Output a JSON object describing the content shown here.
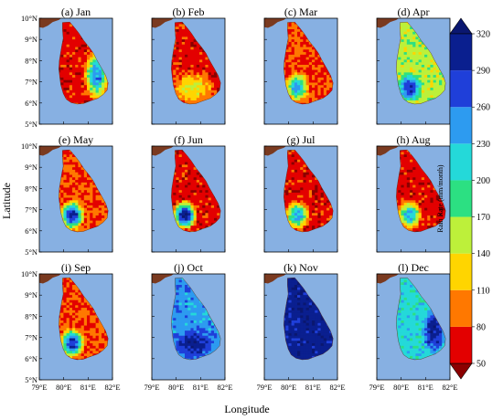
{
  "chart_data": {
    "type": "heatmap",
    "xlabel": "Longitude",
    "ylabel": "Latitude",
    "x_ticks": [
      "79°E",
      "80°E",
      "81°E",
      "82°E"
    ],
    "y_ticks": [
      "5°N",
      "6°N",
      "7°N",
      "8°N",
      "9°N",
      "10°N"
    ],
    "xlim": [
      79,
      82
    ],
    "ylim": [
      5,
      10
    ],
    "colorbar": {
      "label": "Rain Rate (mm/month)",
      "ticks": [
        "50",
        "80",
        "110",
        "140",
        "170",
        "200",
        "230",
        "260",
        "290",
        "320"
      ],
      "colors": [
        "#8b0000",
        "#e30000",
        "#ff7800",
        "#ffd500",
        "#bdf03a",
        "#2ce082",
        "#24d9d9",
        "#2d9bf0",
        "#1f3fd9",
        "#0a1f8f",
        "#0a1770"
      ]
    },
    "background_colors": {
      "ocean": "#87b0e2",
      "land_outside": "#7a3a20"
    },
    "panels": [
      {
        "label": "(a) Jan",
        "month": "Jan",
        "dominant_range_mm": [
          50,
          80
        ],
        "wettest_range_mm": [
          200,
          290
        ],
        "wet_region": "east"
      },
      {
        "label": "(b) Feb",
        "month": "Feb",
        "dominant_range_mm": [
          50,
          80
        ],
        "wettest_range_mm": [
          110,
          170
        ],
        "wet_region": "south"
      },
      {
        "label": "(c) Mar",
        "month": "Mar",
        "dominant_range_mm": [
          50,
          110
        ],
        "wettest_range_mm": [
          170,
          290
        ],
        "wet_region": "south-west"
      },
      {
        "label": "(d) Apr",
        "month": "Apr",
        "dominant_range_mm": [
          110,
          200
        ],
        "wettest_range_mm": [
          260,
          320
        ],
        "wet_region": "south-west"
      },
      {
        "label": "(e) May",
        "month": "May",
        "dominant_range_mm": [
          50,
          110
        ],
        "wettest_range_mm": [
          260,
          320
        ],
        "wet_region": "south-west"
      },
      {
        "label": "(f) Jun",
        "month": "Jun",
        "dominant_range_mm": [
          50,
          80
        ],
        "wettest_range_mm": [
          290,
          320
        ],
        "wet_region": "south-west"
      },
      {
        "label": "(g) Jul",
        "month": "Jul",
        "dominant_range_mm": [
          50,
          80
        ],
        "wettest_range_mm": [
          200,
          260
        ],
        "wet_region": "south-west"
      },
      {
        "label": "(h) Aug",
        "month": "Aug",
        "dominant_range_mm": [
          50,
          80
        ],
        "wettest_range_mm": [
          200,
          260
        ],
        "wet_region": "south-west"
      },
      {
        "label": "(i) Sep",
        "month": "Sep",
        "dominant_range_mm": [
          50,
          110
        ],
        "wettest_range_mm": [
          260,
          320
        ],
        "wet_region": "south-west"
      },
      {
        "label": "(j) Oct",
        "month": "Oct",
        "dominant_range_mm": [
          200,
          290
        ],
        "wettest_range_mm": [
          290,
          320
        ],
        "wet_region": "south"
      },
      {
        "label": "(k) Nov",
        "month": "Nov",
        "dominant_range_mm": [
          290,
          320
        ],
        "wettest_range_mm": [
          290,
          320
        ],
        "wet_region": "whole"
      },
      {
        "label": "(l) Dec",
        "month": "Dec",
        "dominant_range_mm": [
          170,
          260
        ],
        "wettest_range_mm": [
          290,
          320
        ],
        "wet_region": "east"
      }
    ]
  }
}
